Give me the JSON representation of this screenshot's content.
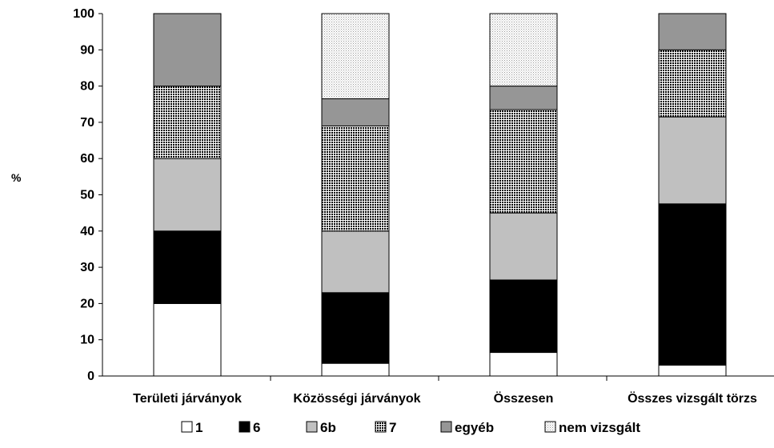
{
  "chart_data": {
    "type": "bar",
    "stacked": true,
    "ylabel": "%",
    "ylim": [
      0,
      100
    ],
    "yticks": [
      0,
      10,
      20,
      30,
      40,
      50,
      60,
      70,
      80,
      90,
      100
    ],
    "categories": [
      "Területi járványok",
      "Közösségi járványok",
      "Összesen",
      "Összes vizsgált törzs"
    ],
    "series": [
      {
        "name": "1",
        "fill": "white",
        "values": [
          20,
          3.5,
          6.5,
          3
        ]
      },
      {
        "name": "6",
        "fill": "black",
        "values": [
          20,
          19.5,
          20,
          44.5
        ]
      },
      {
        "name": "6b",
        "fill": "lightgray",
        "values": [
          20,
          17,
          18.5,
          24
        ]
      },
      {
        "name": "7",
        "fill": "checker",
        "values": [
          20,
          29,
          28.5,
          18.5
        ]
      },
      {
        "name": "egyéb",
        "fill": "darkgray",
        "values": [
          20,
          7.5,
          6.5,
          10
        ]
      },
      {
        "name": "nem vizsgált",
        "fill": "dotted",
        "values": [
          0,
          23.5,
          20,
          0
        ]
      }
    ],
    "legend_position": "bottom",
    "grid": false
  },
  "colors": {
    "black": "#000000",
    "lightgray": "#c0c0c0",
    "darkgray": "#969696",
    "checker_bg": "#ffffff",
    "checker_fg": "#000000",
    "dotted_bg": "#ffffff",
    "dotted_fg": "#9a9a9a"
  }
}
